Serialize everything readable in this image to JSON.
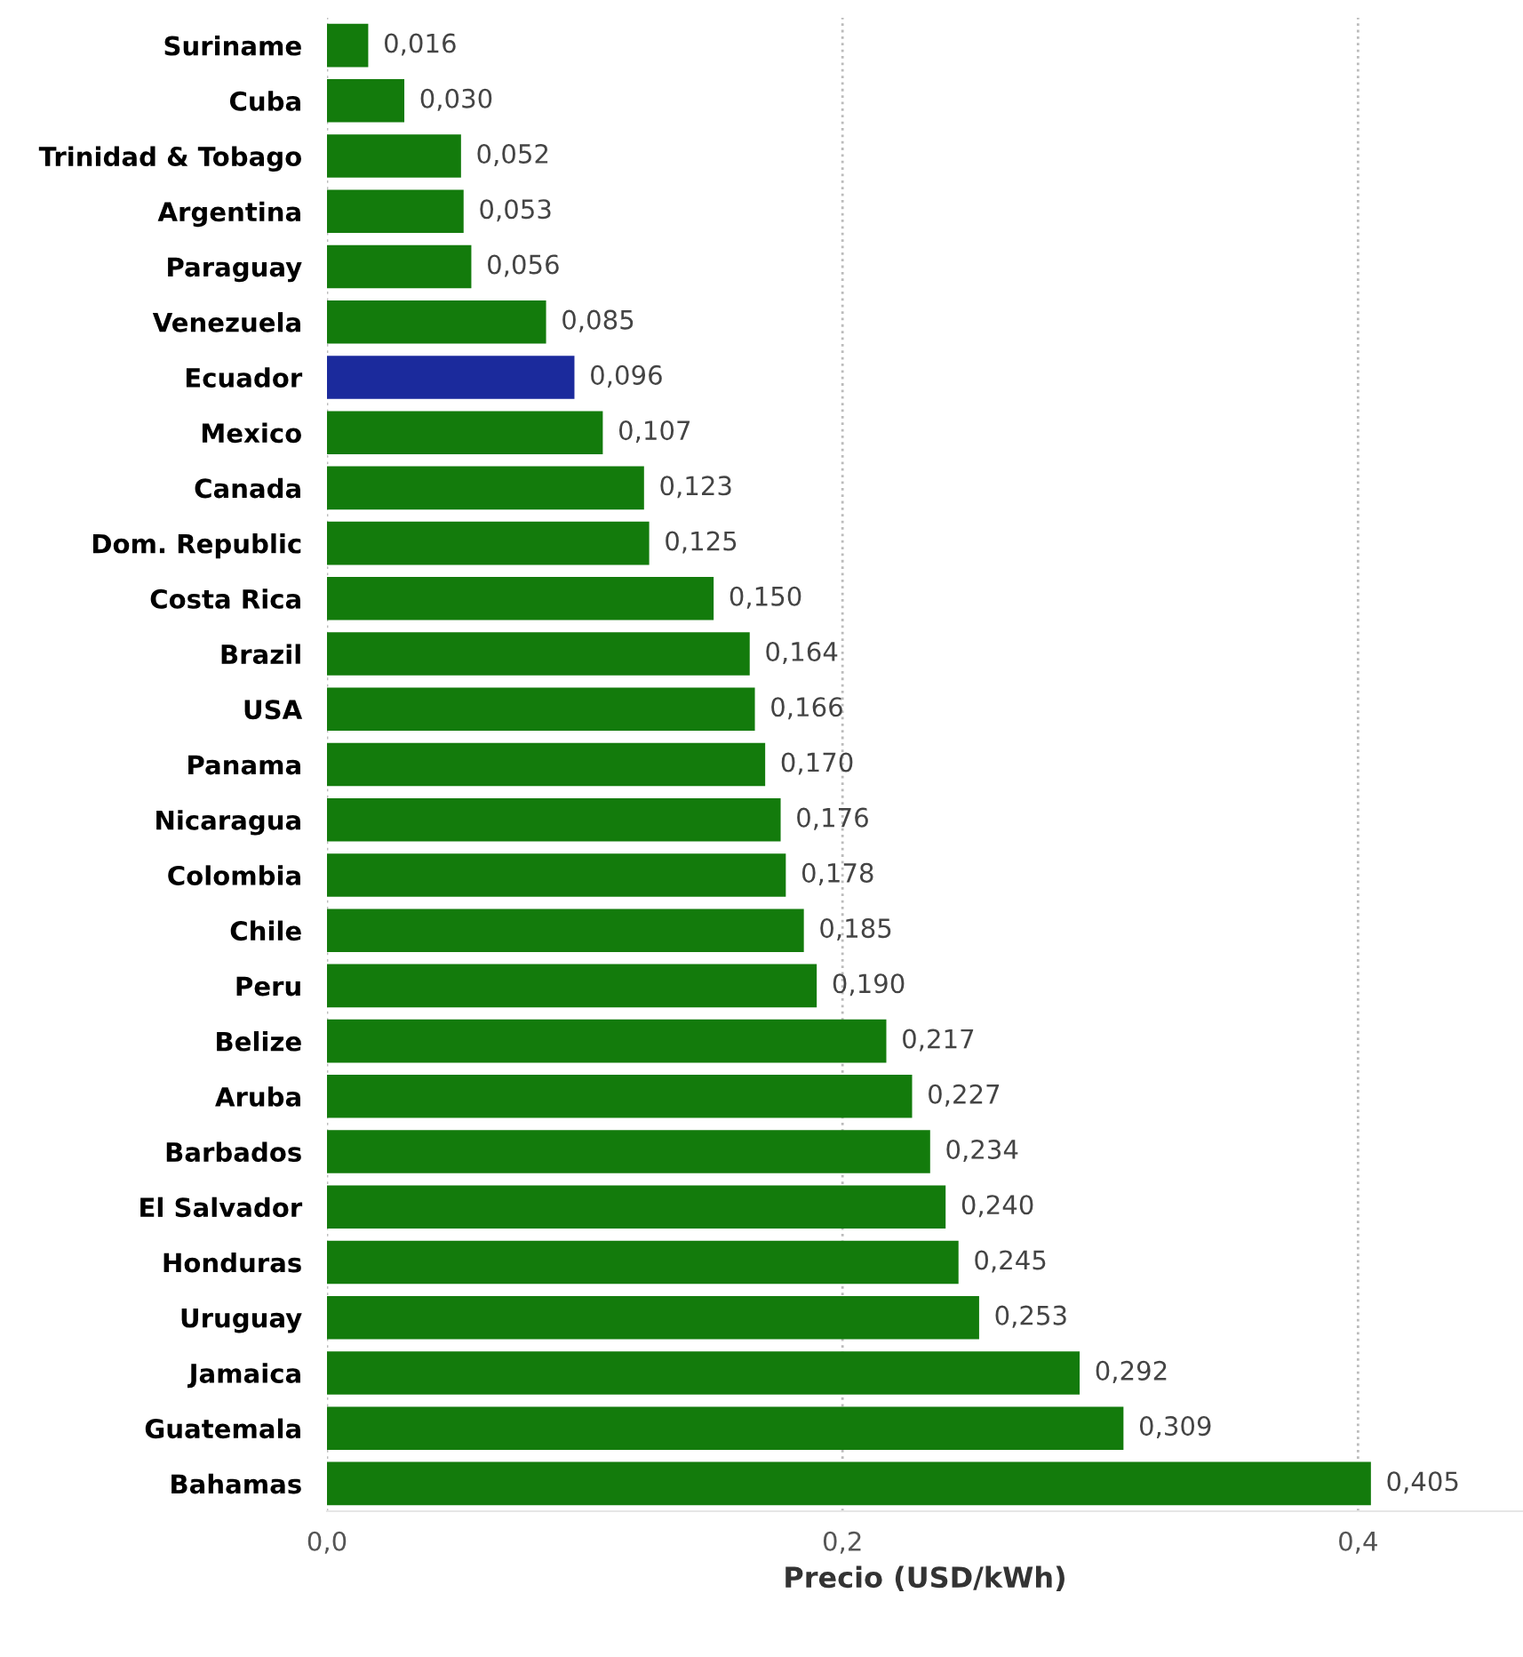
{
  "chart_data": {
    "type": "bar",
    "orientation": "horizontal",
    "xlabel": "Precio (USD/kWh)",
    "categories": [
      "Suriname",
      "Cuba",
      "Trinidad & Tobago",
      "Argentina",
      "Paraguay",
      "Venezuela",
      "Ecuador",
      "Mexico",
      "Canada",
      "Dom. Republic",
      "Costa Rica",
      "Brazil",
      "USA",
      "Panama",
      "Nicaragua",
      "Colombia",
      "Chile",
      "Peru",
      "Belize",
      "Aruba",
      "Barbados",
      "El Salvador",
      "Honduras",
      "Uruguay",
      "Jamaica",
      "Guatemala",
      "Bahamas"
    ],
    "values": [
      0.016,
      0.03,
      0.052,
      0.053,
      0.056,
      0.085,
      0.096,
      0.107,
      0.123,
      0.125,
      0.15,
      0.164,
      0.166,
      0.17,
      0.176,
      0.178,
      0.185,
      0.19,
      0.217,
      0.227,
      0.234,
      0.24,
      0.245,
      0.253,
      0.292,
      0.309,
      0.405
    ],
    "value_labels": [
      "0,016",
      "0,030",
      "0,052",
      "0,053",
      "0,056",
      "0,085",
      "0,096",
      "0,107",
      "0,123",
      "0,125",
      "0,150",
      "0,164",
      "0,166",
      "0,170",
      "0,176",
      "0,178",
      "0,185",
      "0,190",
      "0,217",
      "0,227",
      "0,234",
      "0,240",
      "0,245",
      "0,253",
      "0,292",
      "0,309",
      "0,405"
    ],
    "colors": [
      "#137b0c",
      "#137b0c",
      "#137b0c",
      "#137b0c",
      "#137b0c",
      "#137b0c",
      "#1b2a9c",
      "#137b0c",
      "#137b0c",
      "#137b0c",
      "#137b0c",
      "#137b0c",
      "#137b0c",
      "#137b0c",
      "#137b0c",
      "#137b0c",
      "#137b0c",
      "#137b0c",
      "#137b0c",
      "#137b0c",
      "#137b0c",
      "#137b0c",
      "#137b0c",
      "#137b0c",
      "#137b0c",
      "#137b0c",
      "#137b0c"
    ],
    "xlim": [
      0,
      0.464
    ],
    "xticks": [
      {
        "value": 0,
        "label": "0,0"
      },
      {
        "value": 0.2,
        "label": "0,2"
      },
      {
        "value": 0.4,
        "label": "0,4"
      }
    ],
    "grid": "x"
  }
}
